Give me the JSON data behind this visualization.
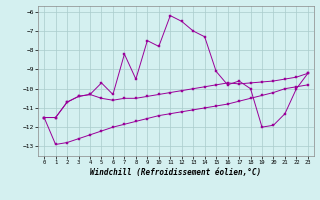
{
  "xlabel": "Windchill (Refroidissement éolien,°C)",
  "x": [
    0,
    1,
    2,
    3,
    4,
    5,
    6,
    7,
    8,
    9,
    10,
    11,
    12,
    13,
    14,
    15,
    16,
    17,
    18,
    19,
    20,
    21,
    22,
    23
  ],
  "line1": [
    -11.5,
    -11.5,
    -10.7,
    -10.4,
    -10.3,
    -9.7,
    -10.3,
    -8.2,
    -9.5,
    -7.5,
    -7.8,
    -6.2,
    -6.5,
    -7.0,
    -7.3,
    -9.1,
    -9.8,
    -9.6,
    -10.0,
    -12.0,
    -11.9,
    -11.3,
    -10.0,
    -9.2
  ],
  "line2": [
    -11.5,
    -11.5,
    -10.7,
    -10.4,
    -10.3,
    -10.5,
    -10.6,
    -10.5,
    -10.5,
    -10.4,
    -10.3,
    -10.2,
    -10.1,
    -10.0,
    -9.9,
    -9.8,
    -9.7,
    -9.75,
    -9.7,
    -9.65,
    -9.6,
    -9.5,
    -9.4,
    -9.2
  ],
  "line3": [
    -11.5,
    -12.9,
    -12.8,
    -12.6,
    -12.4,
    -12.2,
    -12.0,
    -11.85,
    -11.7,
    -11.55,
    -11.4,
    -11.3,
    -11.2,
    -11.1,
    -11.0,
    -10.9,
    -10.8,
    -10.65,
    -10.5,
    -10.35,
    -10.2,
    -10.0,
    -9.9,
    -9.8
  ],
  "line_color": "#990099",
  "bg_color": "#d4f0f0",
  "grid_color": "#aacccc",
  "ylim": [
    -13.5,
    -5.7
  ],
  "yticks": [
    -13,
    -12,
    -11,
    -10,
    -9,
    -8,
    -7,
    -6
  ],
  "xticks": [
    0,
    1,
    2,
    3,
    4,
    5,
    6,
    7,
    8,
    9,
    10,
    11,
    12,
    13,
    14,
    15,
    16,
    17,
    18,
    19,
    20,
    21,
    22,
    23
  ],
  "xlim": [
    -0.5,
    23.5
  ]
}
